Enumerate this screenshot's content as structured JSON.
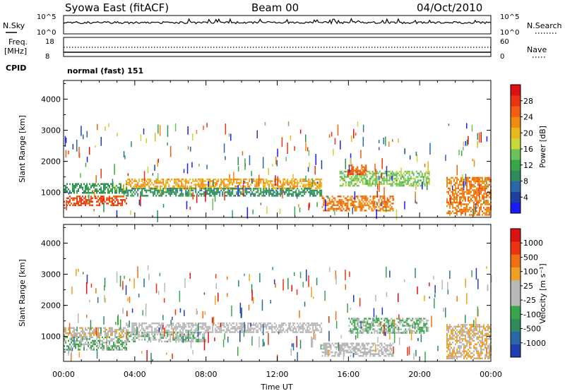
{
  "header": {
    "station": "Syowa East (fitACF)",
    "beam": "Beam 00",
    "date": "04/Oct/2010"
  },
  "top_panels": {
    "nsky": {
      "label": "N.Sky",
      "ticks": [
        "10^5",
        "10^0"
      ]
    },
    "nsearch": {
      "label": "N.Search",
      "ticks": [
        "10^5",
        "10^0"
      ]
    },
    "freq": {
      "label_line1": "Freq.",
      "label_line2": "[MHz]",
      "ticks": [
        "18",
        "8"
      ]
    },
    "nave": {
      "label": "Nave",
      "ticks": [
        "60",
        "0"
      ]
    },
    "cpid": {
      "label": "CPID",
      "value": "normal (fast) 151"
    }
  },
  "chart_data": [
    {
      "type": "heatmap",
      "title": "",
      "xlabel": "Time UT",
      "ylabel": "Slant Range [km]",
      "xlim": [
        "00:00",
        "24:00"
      ],
      "ylim": [
        200,
        4600
      ],
      "x_ticks": [
        "00:00",
        "04:00",
        "08:00",
        "12:00",
        "16:00",
        "20:00",
        "00:00"
      ],
      "y_ticks": [
        "1000",
        "2000",
        "3000",
        "4000"
      ],
      "colorbar": {
        "label": "Power [dB]",
        "ticks": [
          "4",
          "8",
          "12",
          "16",
          "20",
          "24",
          "28"
        ],
        "range": [
          0,
          30
        ],
        "colors": [
          "#1a1aff",
          "#1f3f9f",
          "#2b67a7",
          "#2f8c5a",
          "#3aa64a",
          "#6bc25a",
          "#c6d83a",
          "#e8b81c",
          "#f08a10",
          "#f06010",
          "#ec3412",
          "#e01010"
        ]
      },
      "echo_bands": [
        {
          "t_start": 0.0,
          "t_end": 3.5,
          "r_start": 600,
          "r_end": 900,
          "level": 25
        },
        {
          "t_start": 0.0,
          "t_end": 3.5,
          "r_start": 1000,
          "r_end": 1300,
          "level": 10
        },
        {
          "t_start": 3.5,
          "t_end": 14.5,
          "r_start": 1150,
          "r_end": 1450,
          "level": 20
        },
        {
          "t_start": 3.5,
          "t_end": 14.5,
          "r_start": 900,
          "r_end": 1150,
          "level": 9
        },
        {
          "t_start": 14.5,
          "t_end": 18.5,
          "r_start": 400,
          "r_end": 900,
          "level": 22
        },
        {
          "t_start": 15.5,
          "t_end": 20.5,
          "r_start": 1200,
          "r_end": 1700,
          "level": 14
        },
        {
          "t_start": 16.0,
          "t_end": 17.0,
          "r_start": 1600,
          "r_end": 1900,
          "level": 24
        },
        {
          "t_start": 21.5,
          "t_end": 24.0,
          "r_start": 300,
          "r_end": 1500,
          "level": 22
        }
      ]
    },
    {
      "type": "heatmap",
      "title": "",
      "xlabel": "Time UT",
      "ylabel": "Slant Range [km]",
      "xlim": [
        "00:00",
        "24:00"
      ],
      "ylim": [
        200,
        4600
      ],
      "x_ticks": [
        "00:00",
        "04:00",
        "08:00",
        "12:00",
        "16:00",
        "20:00",
        "00:00"
      ],
      "y_ticks": [
        "1000",
        "2000",
        "3000",
        "4000"
      ],
      "colorbar": {
        "label": "Velocity [m s⁻¹]",
        "ticks": [
          "1000",
          "500",
          "100",
          "25",
          "-25",
          "-100",
          "-500",
          "-1000"
        ],
        "range": [
          -1000,
          1000
        ],
        "colors": [
          "#1f3fb0",
          "#2b67a7",
          "#2f8c5a",
          "#3aa64a",
          "#b8b8b8",
          "#b8b8b8",
          "#f0a020",
          "#f07010",
          "#ec3412",
          "#e01010"
        ]
      },
      "echo_bands": [
        {
          "t_start": 0.0,
          "t_end": 3.5,
          "r_start": 600,
          "r_end": 1000,
          "level": -200
        },
        {
          "t_start": 0.0,
          "t_end": 3.5,
          "r_start": 1000,
          "r_end": 1300,
          "level": 150
        },
        {
          "t_start": 3.5,
          "t_end": 14.5,
          "r_start": 1150,
          "r_end": 1450,
          "level": 0
        },
        {
          "t_start": 3.5,
          "t_end": 8.0,
          "r_start": 850,
          "r_end": 1150,
          "level": -150
        },
        {
          "t_start": 14.5,
          "t_end": 18.5,
          "r_start": 400,
          "r_end": 800,
          "level": 0
        },
        {
          "t_start": 16.0,
          "t_end": 20.5,
          "r_start": 1100,
          "r_end": 1600,
          "level": -200
        },
        {
          "t_start": 21.5,
          "t_end": 24.0,
          "r_start": 300,
          "r_end": 1400,
          "level": 200
        }
      ]
    }
  ]
}
